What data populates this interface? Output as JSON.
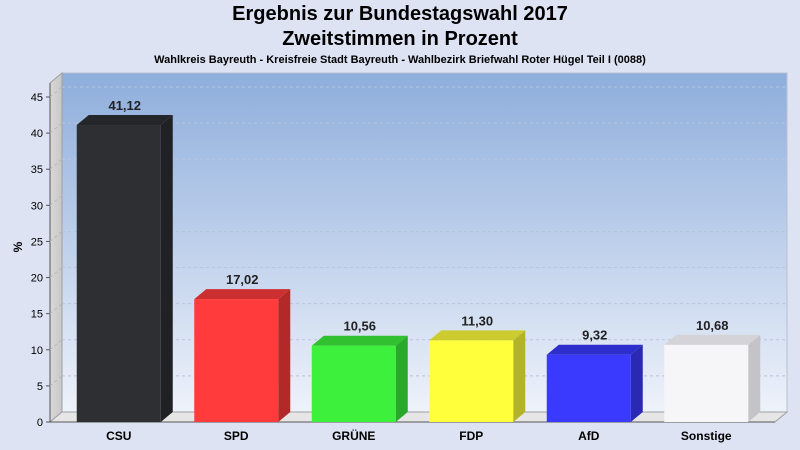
{
  "chart_data": {
    "type": "bar",
    "title": "Ergebnis zur Bundestagswahl 2017",
    "title2": "Zweitstimmen in Prozent",
    "subtitle": "Wahlkreis Bayreuth - Kreisfreie Stadt Bayreuth - Wahlbezirk Briefwahl Roter Hügel Teil I (0088)",
    "xlabel": "",
    "ylabel": "%",
    "ylim": [
      0,
      47
    ],
    "yticks": [
      0,
      5,
      10,
      15,
      20,
      25,
      30,
      35,
      40,
      45
    ],
    "grid": true,
    "categories": [
      "CSU",
      "SPD",
      "GRÜNE",
      "FDP",
      "AfD",
      "Sonstige"
    ],
    "values": [
      41.12,
      17.02,
      10.56,
      11.3,
      9.32,
      10.68
    ],
    "value_labels": [
      "41,12",
      "17,02",
      "10,56",
      "11,30",
      "9,32",
      "10,68"
    ],
    "colors": [
      "#2d2f33",
      "#ff3b3b",
      "#3cf03c",
      "#ffff3c",
      "#3a3aff",
      "#f6f6f8"
    ]
  }
}
